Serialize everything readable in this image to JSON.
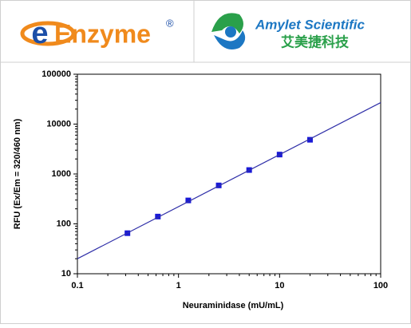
{
  "header": {
    "left_logo": {
      "mark": "e",
      "name": "Enzyme",
      "reg": "®"
    },
    "right_logo": {
      "name": "Amylet Scientific",
      "name_cn": "艾美捷科技"
    }
  },
  "chart_data": {
    "type": "scatter",
    "x_label": "Neuraminidase (mU/mL)",
    "y_label": "RFU (Ex/Em = 320/460 nm)",
    "xscale": "log",
    "yscale": "log",
    "xlim": [
      0.1,
      100
    ],
    "ylim": [
      10,
      100000
    ],
    "xticks": [
      0.1,
      1,
      10,
      100
    ],
    "yticks": [
      10,
      100,
      1000,
      10000,
      100000
    ],
    "series": [
      {
        "kind": "points",
        "color": "#1a1ad6",
        "x": [
          0.3125,
          0.625,
          1.25,
          2.5,
          5,
          10,
          20
        ],
        "values": [
          65,
          140,
          295,
          590,
          1200,
          2450,
          4850
        ]
      },
      {
        "kind": "line",
        "color": "#2f2fa8",
        "x": [
          0.1,
          100
        ],
        "values": [
          20,
          27000
        ]
      }
    ]
  }
}
